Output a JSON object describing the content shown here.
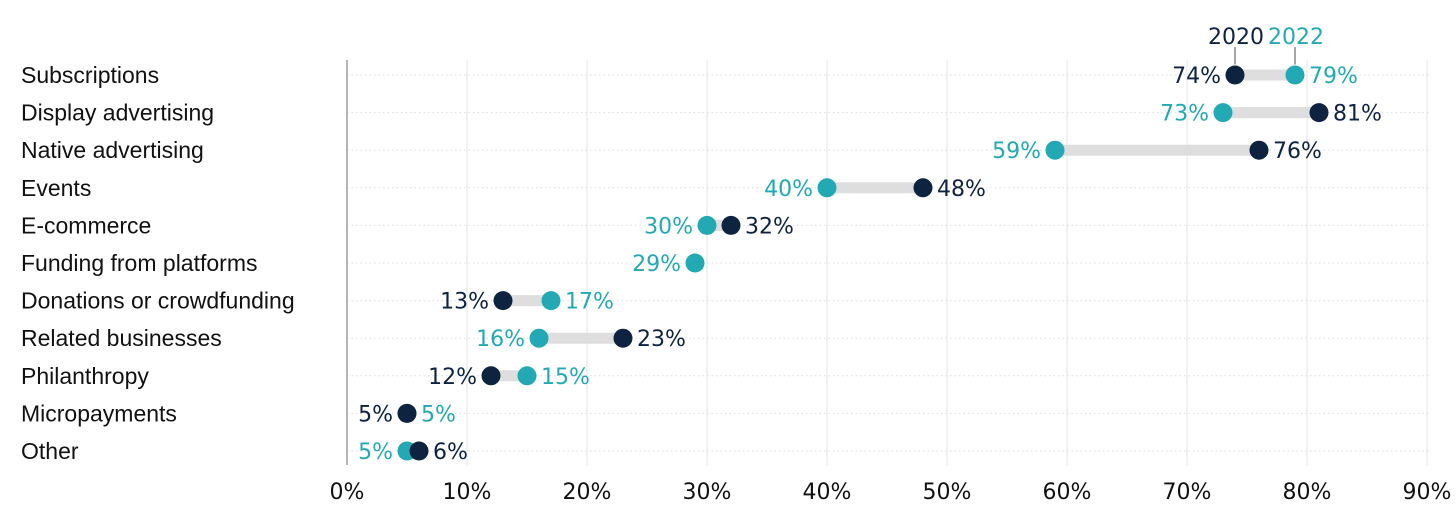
{
  "chart_data": {
    "type": "dumbbell",
    "categories": [
      "Subscriptions",
      "Display advertising",
      "Native advertising",
      "Events",
      "E-commerce",
      "Funding from platforms",
      "Donations or crowdfunding",
      "Related businesses",
      "Philanthropy",
      "Micropayments",
      "Other"
    ],
    "series": [
      {
        "name": "2020",
        "color": "#0d2340",
        "values": [
          74,
          81,
          76,
          48,
          32,
          null,
          13,
          23,
          12,
          5,
          6
        ]
      },
      {
        "name": "2022",
        "color": "#23a9b4",
        "values": [
          79,
          73,
          59,
          40,
          30,
          29,
          17,
          16,
          15,
          5,
          5
        ]
      }
    ],
    "value_labels": {
      "2020": [
        "74%",
        "81%",
        "76%",
        "48%",
        "32%",
        "",
        "13%",
        "23%",
        "12%",
        "5%",
        "6%"
      ],
      "2022": [
        "79%",
        "73%",
        "59%",
        "40%",
        "30%",
        "29%",
        "17%",
        "16%",
        "15%",
        "5%",
        "5%"
      ]
    },
    "x_ticks": [
      0,
      10,
      20,
      30,
      40,
      50,
      60,
      70,
      80,
      90
    ],
    "x_tick_labels": [
      "0%",
      "10%",
      "20%",
      "30%",
      "40%",
      "50%",
      "60%",
      "70%",
      "80%",
      "90%"
    ],
    "xlim": [
      0,
      90
    ],
    "legend": {
      "items": [
        "2020",
        "2022"
      ],
      "placement": "top, above first row"
    },
    "grid": true,
    "connector_color": "#dedede"
  }
}
